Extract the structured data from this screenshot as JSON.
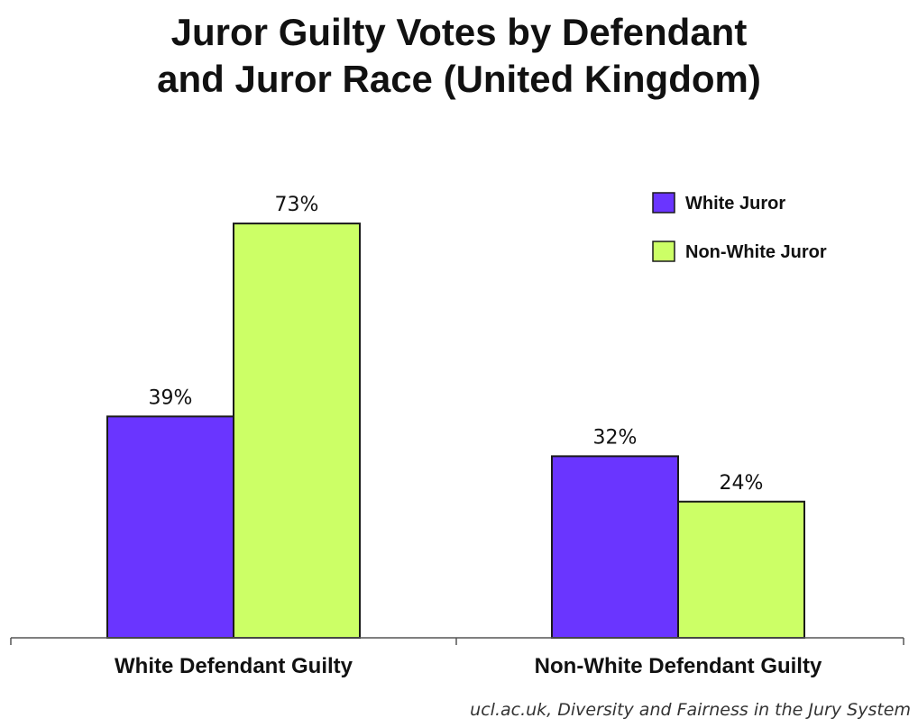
{
  "title_lines": [
    "Juror Guilty Votes by Defendant",
    "and Juror Race (United Kingdom)"
  ],
  "source": "ucl.ac.uk, Diversity and Fairness in the Jury System",
  "chart_data": {
    "type": "bar",
    "title": "Juror Guilty Votes by Defendant and Juror Race (United Kingdom)",
    "categories": [
      "White Defendant Guilty",
      "Non-White Defendant Guilty"
    ],
    "series": [
      {
        "name": "White Juror",
        "values": [
          39,
          32
        ],
        "labels": [
          "39%",
          "32%"
        ],
        "color": "#6a35ff"
      },
      {
        "name": "Non-White Juror",
        "values": [
          73,
          24
        ],
        "labels": [
          "73%",
          "24%"
        ],
        "color": "#ccff66"
      }
    ],
    "unit": "%",
    "ylim": [
      0,
      100
    ],
    "grid": false,
    "legend": "top-right"
  }
}
